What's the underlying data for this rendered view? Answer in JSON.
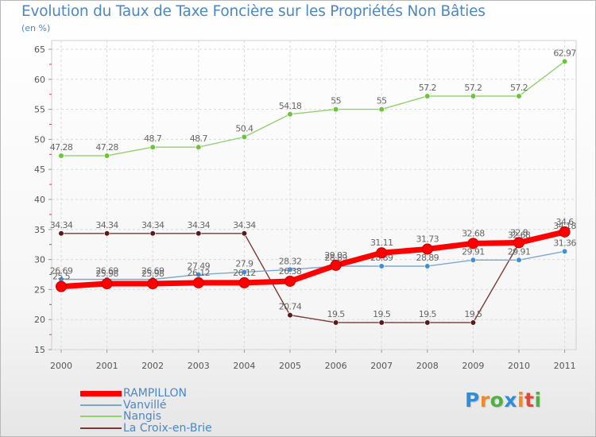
{
  "chart_data": {
    "type": "line",
    "title": "Evolution du Taux de Taxe Foncière sur les Propriétés Non Bâties",
    "ylabel": "(en %)",
    "xlabel": "",
    "ylim": [
      15,
      65
    ],
    "yticks": [
      "15",
      "20",
      "25",
      "30",
      "35",
      "40",
      "45",
      "50",
      "55",
      "60",
      "65"
    ],
    "categories": [
      "2000",
      "2001",
      "2002",
      "2003",
      "2004",
      "2005",
      "2006",
      "2007",
      "2008",
      "2009",
      "2010",
      "2011"
    ],
    "grid": true,
    "legend_position": "bottom-left",
    "series": [
      {
        "name": "RAMPILLON",
        "color": "#ff0000",
        "emphasis": true,
        "values": [
          25.5,
          25.98,
          25.98,
          26.12,
          26.12,
          26.38,
          29.03,
          31.11,
          31.73,
          32.68,
          32.8,
          34.6
        ],
        "labels": [
          "25.5",
          "25.98",
          "25.98",
          "26.12",
          "26.12",
          "26.38",
          "29.03",
          "31.11",
          "31.73",
          "32.68",
          "32.8",
          "34.6"
        ]
      },
      {
        "name": "Vanvillé",
        "color": "#7aa8d2",
        "marker_color": "#3f8fd8",
        "values": [
          26.69,
          26.69,
          26.69,
          27.49,
          27.9,
          28.32,
          28.89,
          28.89,
          28.89,
          29.91,
          29.91,
          31.36
        ],
        "labels": [
          "26.69",
          "26.69",
          "26.69",
          "27.49",
          "27.9",
          "28.32",
          "28.89",
          "28.89",
          "28.89",
          "29.91",
          "29.91",
          "31.36"
        ]
      },
      {
        "name": "Nangis",
        "color": "#8fd26c",
        "marker_color": "#6cc43c",
        "values": [
          47.28,
          47.28,
          48.7,
          48.7,
          50.4,
          54.18,
          55,
          55,
          57.2,
          57.2,
          57.2,
          62.97
        ],
        "labels": [
          "47.28",
          "47.28",
          "48.7",
          "48.7",
          "50.4",
          "54.18",
          "55",
          "55",
          "57.2",
          "57.2",
          "57.2",
          "62.97"
        ]
      },
      {
        "name": "La Croix-en-Brie",
        "color": "#7a3838",
        "marker_color": "#5a1a1a",
        "values": [
          34.34,
          34.34,
          34.34,
          34.34,
          34.34,
          20.74,
          19.5,
          19.5,
          19.5,
          19.5,
          32.68,
          34.18
        ],
        "labels": [
          "34.34",
          "34.34",
          "34.34",
          "34.34",
          "34.34",
          "20.74",
          "19.5",
          "19.5",
          "19.5",
          "19.5",
          "32.68",
          "34.18"
        ]
      }
    ]
  },
  "brand": {
    "letters": [
      "P",
      "r",
      "o",
      "x",
      "i",
      "t",
      "i"
    ],
    "colors": [
      "#2f8fd6",
      "#f08a24",
      "#4fb043",
      "#2f8fd6",
      "#f08a24",
      "#e04a3a",
      "#4fb043"
    ]
  }
}
